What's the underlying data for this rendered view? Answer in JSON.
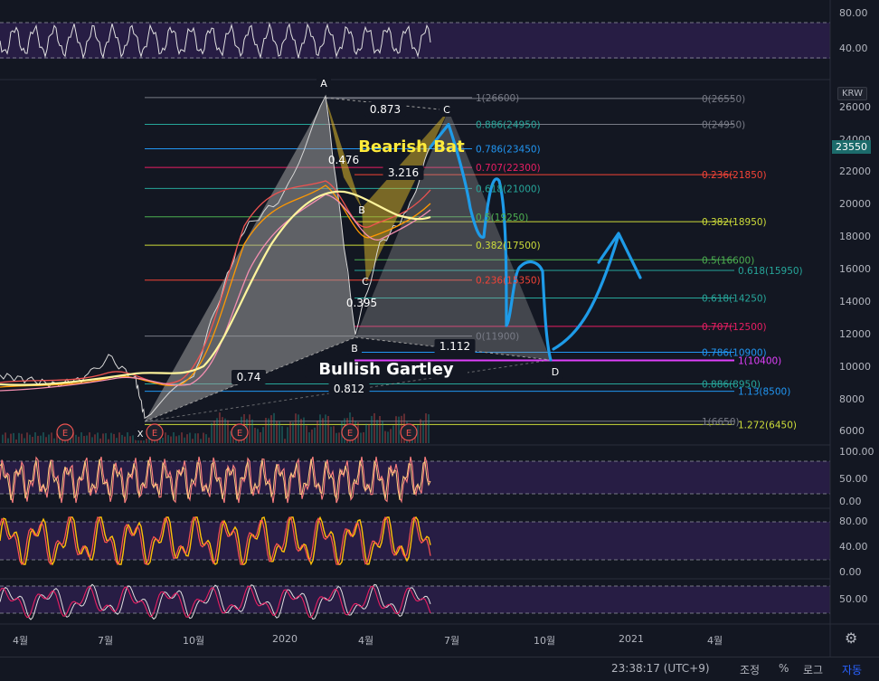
{
  "axis": {
    "currency": "KRW",
    "last_price": "23550",
    "price_ticks": [
      "26000",
      "24000",
      "22000",
      "20000",
      "18000",
      "16000",
      "14000",
      "12000",
      "10000",
      "8000",
      "6000"
    ],
    "time_ticks": [
      "4월",
      "7월",
      "10월",
      "2020",
      "4월",
      "7월",
      "10월",
      "2021",
      "4월"
    ],
    "rsi_ticks": [
      "80.00",
      "40.00"
    ],
    "osc1_ticks": [
      "100.00",
      "50.00",
      "0.00"
    ],
    "osc2_ticks": [
      "80.00",
      "40.00",
      "0.00"
    ],
    "osc3_ticks": [
      "50.00"
    ]
  },
  "footer": {
    "clock": "23:38:17 (UTC+9)",
    "adjust": "조정",
    "percent": "%",
    "log": "로그",
    "auto": "자동",
    "settings_icon": "gear-icon"
  },
  "event_marker": "E",
  "patterns": {
    "bearish_bat": "Bearish Bat",
    "bullish_gartley": "Bullish Gartley",
    "points": {
      "A": "A",
      "B1": "B",
      "C1": "C",
      "C2": "C",
      "B2": "B",
      "D": "D",
      "X": "X"
    },
    "ratios": [
      "0.873",
      "0.476",
      "3.216",
      "0.395",
      "1.112",
      "0.74",
      "0.812"
    ]
  },
  "fib_levels_left": [
    {
      "label": "1(26600)",
      "value": 26600,
      "color": "#787b86"
    },
    {
      "label": "0.886(24950)",
      "value": 24950,
      "color": "#26a69a"
    },
    {
      "label": "0.786(23450)",
      "value": 23450,
      "color": "#2196f3"
    },
    {
      "label": "0.707(22300)",
      "value": 22300,
      "color": "#e91e63"
    },
    {
      "label": "0.618(21000)",
      "value": 21000,
      "color": "#26a69a"
    },
    {
      "label": "0.5(19250)",
      "value": 19250,
      "color": "#4caf50"
    },
    {
      "label": "0.382(17500)",
      "value": 17500,
      "color": "#cddc39"
    },
    {
      "label": "0.236(15350)",
      "value": 15350,
      "color": "#f44336"
    },
    {
      "label": "0(11900)",
      "value": 11900,
      "color": "#787b86"
    }
  ],
  "fib_levels_right": [
    {
      "label": "0(26550)",
      "value": 26550,
      "color": "#787b86"
    },
    {
      "label": "0(24950)",
      "value": 24950,
      "color": "#787b86"
    },
    {
      "label": "0.236(21850)",
      "value": 21850,
      "color": "#f44336"
    },
    {
      "label": "0.382(18950)",
      "value": 18950,
      "color": "#cddc39"
    },
    {
      "label": "0.5(16600)",
      "value": 16600,
      "color": "#4caf50"
    },
    {
      "label": "0.618(15950)",
      "value": 15950,
      "color": "#26a69a"
    },
    {
      "label": "0.618(14250)",
      "value": 14250,
      "color": "#26a69a"
    },
    {
      "label": "0.707(12500)",
      "value": 12500,
      "color": "#e91e63"
    },
    {
      "label": "0.786(10900)",
      "value": 10900,
      "color": "#2196f3"
    },
    {
      "label": "1(10400)",
      "value": 10400,
      "color": "#e040fb"
    },
    {
      "label": "0.886(8950)",
      "value": 8950,
      "color": "#26a69a"
    },
    {
      "label": "1.13(8500)",
      "value": 8500,
      "color": "#2196f3"
    },
    {
      "label": "1(6650)",
      "value": 6650,
      "color": "#787b86"
    },
    {
      "label": "1.272(6450)",
      "value": 6450,
      "color": "#cddc39"
    }
  ],
  "chart_data": {
    "type": "line",
    "price_axis": {
      "min": 5300,
      "max": 27600,
      "unit": "KRW"
    },
    "series": [
      {
        "x": [
          "2019-03",
          "2019-04",
          "2019-05",
          "2019-06",
          "2019-07",
          "2019-08",
          "2019-09",
          "2019-10",
          "2019-11",
          "2019-12",
          "2020-01",
          "2020-02",
          "2020-03",
          "2020-04",
          "2020-05",
          "2020-06"
        ],
        "values": [
          9500,
          9200,
          8900,
          9300,
          10600,
          9200,
          6900,
          9500,
          13800,
          18500,
          20500,
          26600,
          12000,
          17500,
          19500,
          23550
        ]
      }
    ],
    "projection": {
      "x": [
        "2020-06",
        "2020-07",
        "2020-08",
        "2020-09",
        "2020-10",
        "2020-11",
        "2020-12",
        "2021-01"
      ],
      "values": [
        23550,
        24950,
        17700,
        12200,
        10400,
        11400,
        16400,
        15400
      ]
    },
    "colors": {
      "projection": "#1e9be8",
      "pattern_fill": "#e0b92a",
      "pattern_gray": "#9e9e9e",
      "bat_label": "#ffeb3b",
      "candle_up": "#26a69a",
      "candle_down": "#ef5350"
    }
  }
}
